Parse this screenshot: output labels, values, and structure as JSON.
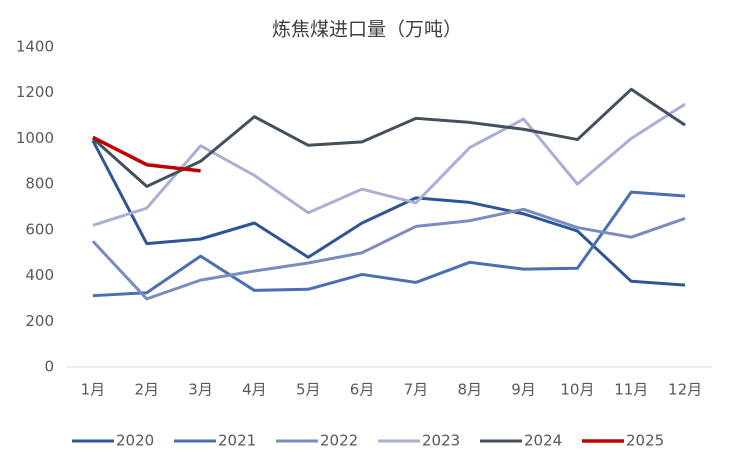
{
  "chart_data": {
    "type": "line",
    "title": "炼焦煤进口量（万吨）",
    "categories": [
      "1月",
      "2月",
      "3月",
      "4月",
      "5月",
      "6月",
      "7月",
      "8月",
      "9月",
      "10月",
      "11月",
      "12月"
    ],
    "ylim": [
      0,
      1400
    ],
    "yticks": [
      0,
      200,
      400,
      600,
      800,
      1000,
      1200,
      1400
    ],
    "grid": false,
    "legend": "bottom",
    "series": [
      {
        "name": "2020",
        "color": "#2f5597",
        "values": [
          990,
          540,
          560,
          630,
          480,
          630,
          740,
          720,
          670,
          595,
          375,
          358
        ]
      },
      {
        "name": "2021",
        "color": "#4a6fb5",
        "values": [
          312,
          325,
          485,
          335,
          340,
          405,
          370,
          458,
          428,
          432,
          765,
          748
        ]
      },
      {
        "name": "2022",
        "color": "#7a8bc0",
        "values": [
          550,
          298,
          380,
          420,
          455,
          500,
          615,
          640,
          690,
          610,
          568,
          650
        ]
      },
      {
        "name": "2023",
        "color": "#a9b0d4",
        "values": [
          620,
          695,
          968,
          838,
          675,
          778,
          718,
          960,
          1085,
          800,
          1000,
          1150
        ]
      },
      {
        "name": "2024",
        "color": "#44505e",
        "values": [
          1000,
          790,
          900,
          1095,
          970,
          985,
          1088,
          1070,
          1040,
          995,
          1215,
          1058
        ]
      },
      {
        "name": "2025",
        "color": "#c00000",
        "values": [
          1005,
          885,
          858,
          null,
          null,
          null,
          null,
          null,
          null,
          null,
          null,
          null
        ]
      }
    ]
  }
}
